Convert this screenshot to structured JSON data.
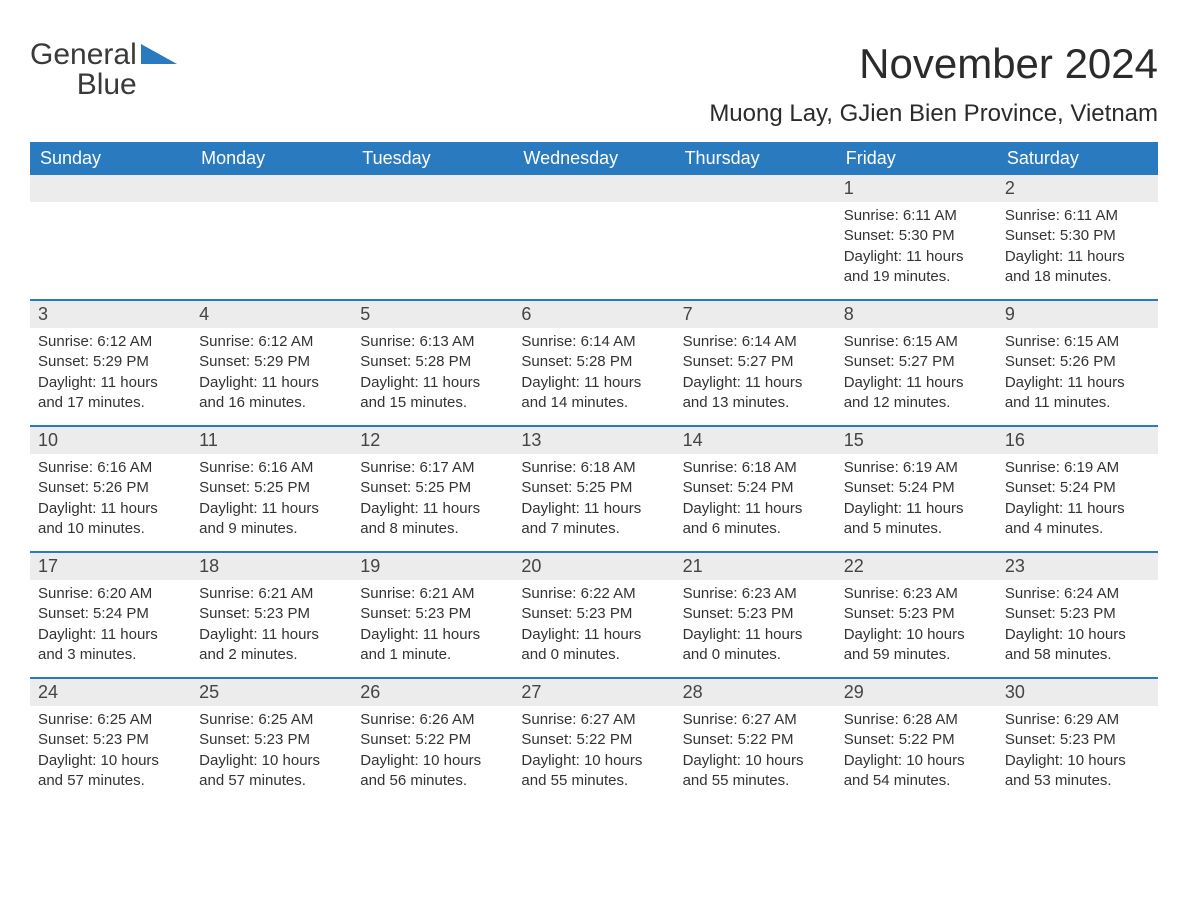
{
  "logo": {
    "word1": "General",
    "word2": "Blue"
  },
  "title": "November 2024",
  "location": "Muong Lay, GJien Bien Province, Vietnam",
  "colors": {
    "header_bg": "#2a7ac0",
    "header_text": "#ffffff",
    "daynum_bg": "#ececec",
    "row_divider": "#2a7ac0",
    "page_bg": "#ffffff",
    "text": "#333333"
  },
  "day_labels": [
    "Sunday",
    "Monday",
    "Tuesday",
    "Wednesday",
    "Thursday",
    "Friday",
    "Saturday"
  ],
  "weeks": [
    [
      {
        "n": "",
        "sunrise": "",
        "sunset": "",
        "daylight": ""
      },
      {
        "n": "",
        "sunrise": "",
        "sunset": "",
        "daylight": ""
      },
      {
        "n": "",
        "sunrise": "",
        "sunset": "",
        "daylight": ""
      },
      {
        "n": "",
        "sunrise": "",
        "sunset": "",
        "daylight": ""
      },
      {
        "n": "",
        "sunrise": "",
        "sunset": "",
        "daylight": ""
      },
      {
        "n": "1",
        "sunrise": "Sunrise: 6:11 AM",
        "sunset": "Sunset: 5:30 PM",
        "daylight": "Daylight: 11 hours and 19 minutes."
      },
      {
        "n": "2",
        "sunrise": "Sunrise: 6:11 AM",
        "sunset": "Sunset: 5:30 PM",
        "daylight": "Daylight: 11 hours and 18 minutes."
      }
    ],
    [
      {
        "n": "3",
        "sunrise": "Sunrise: 6:12 AM",
        "sunset": "Sunset: 5:29 PM",
        "daylight": "Daylight: 11 hours and 17 minutes."
      },
      {
        "n": "4",
        "sunrise": "Sunrise: 6:12 AM",
        "sunset": "Sunset: 5:29 PM",
        "daylight": "Daylight: 11 hours and 16 minutes."
      },
      {
        "n": "5",
        "sunrise": "Sunrise: 6:13 AM",
        "sunset": "Sunset: 5:28 PM",
        "daylight": "Daylight: 11 hours and 15 minutes."
      },
      {
        "n": "6",
        "sunrise": "Sunrise: 6:14 AM",
        "sunset": "Sunset: 5:28 PM",
        "daylight": "Daylight: 11 hours and 14 minutes."
      },
      {
        "n": "7",
        "sunrise": "Sunrise: 6:14 AM",
        "sunset": "Sunset: 5:27 PM",
        "daylight": "Daylight: 11 hours and 13 minutes."
      },
      {
        "n": "8",
        "sunrise": "Sunrise: 6:15 AM",
        "sunset": "Sunset: 5:27 PM",
        "daylight": "Daylight: 11 hours and 12 minutes."
      },
      {
        "n": "9",
        "sunrise": "Sunrise: 6:15 AM",
        "sunset": "Sunset: 5:26 PM",
        "daylight": "Daylight: 11 hours and 11 minutes."
      }
    ],
    [
      {
        "n": "10",
        "sunrise": "Sunrise: 6:16 AM",
        "sunset": "Sunset: 5:26 PM",
        "daylight": "Daylight: 11 hours and 10 minutes."
      },
      {
        "n": "11",
        "sunrise": "Sunrise: 6:16 AM",
        "sunset": "Sunset: 5:25 PM",
        "daylight": "Daylight: 11 hours and 9 minutes."
      },
      {
        "n": "12",
        "sunrise": "Sunrise: 6:17 AM",
        "sunset": "Sunset: 5:25 PM",
        "daylight": "Daylight: 11 hours and 8 minutes."
      },
      {
        "n": "13",
        "sunrise": "Sunrise: 6:18 AM",
        "sunset": "Sunset: 5:25 PM",
        "daylight": "Daylight: 11 hours and 7 minutes."
      },
      {
        "n": "14",
        "sunrise": "Sunrise: 6:18 AM",
        "sunset": "Sunset: 5:24 PM",
        "daylight": "Daylight: 11 hours and 6 minutes."
      },
      {
        "n": "15",
        "sunrise": "Sunrise: 6:19 AM",
        "sunset": "Sunset: 5:24 PM",
        "daylight": "Daylight: 11 hours and 5 minutes."
      },
      {
        "n": "16",
        "sunrise": "Sunrise: 6:19 AM",
        "sunset": "Sunset: 5:24 PM",
        "daylight": "Daylight: 11 hours and 4 minutes."
      }
    ],
    [
      {
        "n": "17",
        "sunrise": "Sunrise: 6:20 AM",
        "sunset": "Sunset: 5:24 PM",
        "daylight": "Daylight: 11 hours and 3 minutes."
      },
      {
        "n": "18",
        "sunrise": "Sunrise: 6:21 AM",
        "sunset": "Sunset: 5:23 PM",
        "daylight": "Daylight: 11 hours and 2 minutes."
      },
      {
        "n": "19",
        "sunrise": "Sunrise: 6:21 AM",
        "sunset": "Sunset: 5:23 PM",
        "daylight": "Daylight: 11 hours and 1 minute."
      },
      {
        "n": "20",
        "sunrise": "Sunrise: 6:22 AM",
        "sunset": "Sunset: 5:23 PM",
        "daylight": "Daylight: 11 hours and 0 minutes."
      },
      {
        "n": "21",
        "sunrise": "Sunrise: 6:23 AM",
        "sunset": "Sunset: 5:23 PM",
        "daylight": "Daylight: 11 hours and 0 minutes."
      },
      {
        "n": "22",
        "sunrise": "Sunrise: 6:23 AM",
        "sunset": "Sunset: 5:23 PM",
        "daylight": "Daylight: 10 hours and 59 minutes."
      },
      {
        "n": "23",
        "sunrise": "Sunrise: 6:24 AM",
        "sunset": "Sunset: 5:23 PM",
        "daylight": "Daylight: 10 hours and 58 minutes."
      }
    ],
    [
      {
        "n": "24",
        "sunrise": "Sunrise: 6:25 AM",
        "sunset": "Sunset: 5:23 PM",
        "daylight": "Daylight: 10 hours and 57 minutes."
      },
      {
        "n": "25",
        "sunrise": "Sunrise: 6:25 AM",
        "sunset": "Sunset: 5:23 PM",
        "daylight": "Daylight: 10 hours and 57 minutes."
      },
      {
        "n": "26",
        "sunrise": "Sunrise: 6:26 AM",
        "sunset": "Sunset: 5:22 PM",
        "daylight": "Daylight: 10 hours and 56 minutes."
      },
      {
        "n": "27",
        "sunrise": "Sunrise: 6:27 AM",
        "sunset": "Sunset: 5:22 PM",
        "daylight": "Daylight: 10 hours and 55 minutes."
      },
      {
        "n": "28",
        "sunrise": "Sunrise: 6:27 AM",
        "sunset": "Sunset: 5:22 PM",
        "daylight": "Daylight: 10 hours and 55 minutes."
      },
      {
        "n": "29",
        "sunrise": "Sunrise: 6:28 AM",
        "sunset": "Sunset: 5:22 PM",
        "daylight": "Daylight: 10 hours and 54 minutes."
      },
      {
        "n": "30",
        "sunrise": "Sunrise: 6:29 AM",
        "sunset": "Sunset: 5:23 PM",
        "daylight": "Daylight: 10 hours and 53 minutes."
      }
    ]
  ]
}
